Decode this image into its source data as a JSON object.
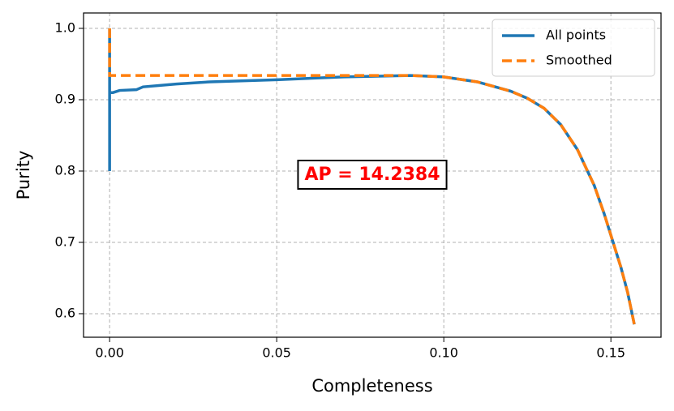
{
  "chart_data": {
    "type": "line",
    "xlabel": "Completeness",
    "ylabel": "Purity",
    "xlim": [
      -0.0078,
      0.165
    ],
    "ylim": [
      0.567,
      1.0216
    ],
    "xticks": [
      {
        "value": 0,
        "label": "0.00"
      },
      0.05,
      {
        "value": 0.1,
        "label": "0.10"
      },
      0.15
    ],
    "yticks": [
      0.6,
      0.7,
      0.8,
      0.9,
      {
        "value": 1.0,
        "label": "1.0"
      }
    ],
    "grid": true,
    "legend": "upper right",
    "annotation": "AP = 14.2384",
    "series": [
      {
        "name": "All points",
        "color": "#1f77b4",
        "dashed": false,
        "x": [
          0,
          0,
          0,
          0.001,
          0.003,
          0.008,
          0.01,
          0.02,
          0.03,
          0.05,
          0.07,
          0.09,
          0.1,
          0.11,
          0.12,
          0.125,
          0.13,
          0.135,
          0.14,
          0.145,
          0.148,
          0.15,
          0.153,
          0.155,
          0.157
        ],
        "values": [
          0.8,
          1.0,
          0.91,
          0.91,
          0.913,
          0.914,
          0.918,
          0.922,
          0.925,
          0.928,
          0.932,
          0.934,
          0.932,
          0.925,
          0.912,
          0.902,
          0.888,
          0.865,
          0.83,
          0.78,
          0.74,
          0.71,
          0.665,
          0.63,
          0.585
        ]
      },
      {
        "name": "Smoothed",
        "color": "#ff7f0e",
        "dashed": true,
        "x": [
          0,
          0,
          0.09,
          0.1,
          0.11,
          0.12,
          0.125,
          0.13,
          0.135,
          0.14,
          0.145,
          0.148,
          0.15,
          0.153,
          0.155,
          0.157
        ],
        "values": [
          1.0,
          0.934,
          0.934,
          0.932,
          0.925,
          0.912,
          0.902,
          0.888,
          0.865,
          0.83,
          0.78,
          0.74,
          0.71,
          0.665,
          0.63,
          0.585
        ]
      }
    ]
  }
}
